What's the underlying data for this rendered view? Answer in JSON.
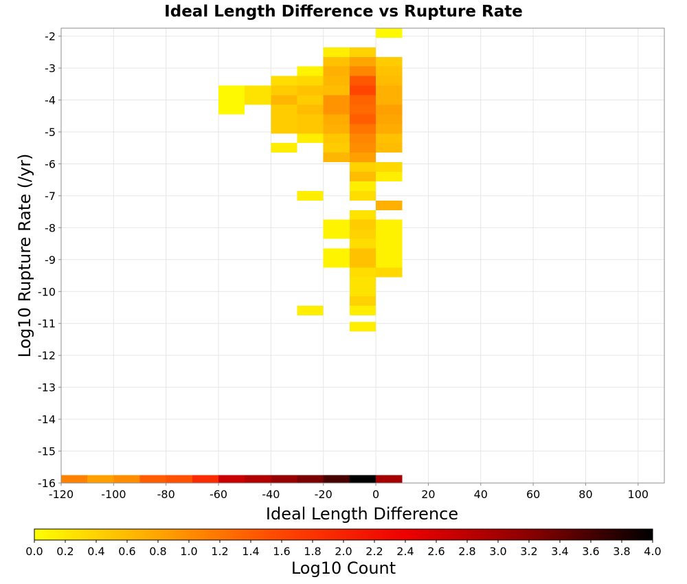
{
  "chart_data": {
    "type": "heatmap",
    "title": "Ideal Length Difference vs Rupture Rate",
    "xlabel": "Ideal Length Difference",
    "ylabel": "Log10 Rupture Rate (/yr)",
    "xlim": [
      -120,
      110
    ],
    "ylim": [
      -16,
      -1.75
    ],
    "x_ticks": [
      "-120",
      "-100",
      "-80",
      "-60",
      "-40",
      "-20",
      "0",
      "20",
      "40",
      "60",
      "80",
      "100"
    ],
    "y_ticks": [
      "-2",
      "-3",
      "-4",
      "-5",
      "-6",
      "-7",
      "-8",
      "-9",
      "-10",
      "-11",
      "-12",
      "-13",
      "-14",
      "-15",
      "-16"
    ],
    "bin_width_x": 10,
    "bin_height_y": 0.3,
    "grid": true,
    "colorbar": {
      "label": "Log10 Count",
      "range": [
        0,
        4
      ],
      "ticks": [
        "0.0",
        "0.2",
        "0.4",
        "0.6",
        "0.8",
        "1.0",
        "1.2",
        "1.4",
        "1.6",
        "1.8",
        "2.0",
        "2.2",
        "2.4",
        "2.6",
        "2.8",
        "3.0",
        "3.2",
        "3.4",
        "3.6",
        "3.8",
        "4.0"
      ],
      "colors": [
        "#ffff00",
        "#ffa500",
        "#ff4500",
        "#ee0000",
        "#8b0000",
        "#000000"
      ]
    },
    "cells": [
      {
        "x": 0,
        "y": -1.9,
        "v": 0.05
      },
      {
        "x": -20,
        "y": -2.5,
        "v": 0.15
      },
      {
        "x": -10,
        "y": -2.5,
        "v": 0.4
      },
      {
        "x": -20,
        "y": -2.8,
        "v": 0.55
      },
      {
        "x": -10,
        "y": -2.8,
        "v": 0.8
      },
      {
        "x": 0,
        "y": -2.8,
        "v": 0.45
      },
      {
        "x": -30,
        "y": -3.1,
        "v": 0.1
      },
      {
        "x": -20,
        "y": -3.1,
        "v": 0.7
      },
      {
        "x": -10,
        "y": -3.1,
        "v": 1.05
      },
      {
        "x": 0,
        "y": -3.1,
        "v": 0.55
      },
      {
        "x": -40,
        "y": -3.4,
        "v": 0.3
      },
      {
        "x": -30,
        "y": -3.4,
        "v": 0.35
      },
      {
        "x": -20,
        "y": -3.4,
        "v": 0.65
      },
      {
        "x": -10,
        "y": -3.4,
        "v": 1.45
      },
      {
        "x": 0,
        "y": -3.4,
        "v": 0.6
      },
      {
        "x": -60,
        "y": -3.7,
        "v": 0.05
      },
      {
        "x": -50,
        "y": -3.7,
        "v": 0.25
      },
      {
        "x": -40,
        "y": -3.7,
        "v": 0.45
      },
      {
        "x": -30,
        "y": -3.7,
        "v": 0.55
      },
      {
        "x": -20,
        "y": -3.7,
        "v": 0.6
      },
      {
        "x": -10,
        "y": -3.7,
        "v": 1.6
      },
      {
        "x": 0,
        "y": -3.7,
        "v": 0.7
      },
      {
        "x": -60,
        "y": -4.0,
        "v": 0.05
      },
      {
        "x": -50,
        "y": -4.0,
        "v": 0.25
      },
      {
        "x": -40,
        "y": -4.0,
        "v": 0.65
      },
      {
        "x": -30,
        "y": -4.0,
        "v": 0.45
      },
      {
        "x": -20,
        "y": -4.0,
        "v": 0.95
      },
      {
        "x": -10,
        "y": -4.0,
        "v": 1.35
      },
      {
        "x": 0,
        "y": -4.0,
        "v": 0.7
      },
      {
        "x": -60,
        "y": -4.3,
        "v": 0.05
      },
      {
        "x": -40,
        "y": -4.3,
        "v": 0.45
      },
      {
        "x": -30,
        "y": -4.3,
        "v": 0.6
      },
      {
        "x": -20,
        "y": -4.3,
        "v": 0.95
      },
      {
        "x": -10,
        "y": -4.3,
        "v": 1.3
      },
      {
        "x": 0,
        "y": -4.3,
        "v": 0.85
      },
      {
        "x": -40,
        "y": -4.6,
        "v": 0.45
      },
      {
        "x": -30,
        "y": -4.6,
        "v": 0.5
      },
      {
        "x": -20,
        "y": -4.6,
        "v": 0.75
      },
      {
        "x": -10,
        "y": -4.6,
        "v": 1.4
      },
      {
        "x": 0,
        "y": -4.6,
        "v": 0.8
      },
      {
        "x": -40,
        "y": -4.9,
        "v": 0.45
      },
      {
        "x": -30,
        "y": -4.9,
        "v": 0.5
      },
      {
        "x": -20,
        "y": -4.9,
        "v": 0.7
      },
      {
        "x": -10,
        "y": -4.9,
        "v": 1.2
      },
      {
        "x": 0,
        "y": -4.9,
        "v": 0.75
      },
      {
        "x": -30,
        "y": -5.2,
        "v": 0.15
      },
      {
        "x": -20,
        "y": -5.2,
        "v": 0.5
      },
      {
        "x": -10,
        "y": -5.2,
        "v": 1.05
      },
      {
        "x": 0,
        "y": -5.2,
        "v": 0.55
      },
      {
        "x": -40,
        "y": -5.5,
        "v": 0.15
      },
      {
        "x": -20,
        "y": -5.5,
        "v": 0.45
      },
      {
        "x": -10,
        "y": -5.5,
        "v": 1.0
      },
      {
        "x": 0,
        "y": -5.5,
        "v": 0.6
      },
      {
        "x": -20,
        "y": -5.8,
        "v": 0.65
      },
      {
        "x": -10,
        "y": -5.8,
        "v": 0.85
      },
      {
        "x": -10,
        "y": -6.1,
        "v": 0.4
      },
      {
        "x": 0,
        "y": -6.1,
        "v": 0.35
      },
      {
        "x": -10,
        "y": -6.4,
        "v": 0.6
      },
      {
        "x": 0,
        "y": -6.4,
        "v": 0.15
      },
      {
        "x": -10,
        "y": -6.7,
        "v": 0.15
      },
      {
        "x": -30,
        "y": -7.0,
        "v": 0.15
      },
      {
        "x": -10,
        "y": -7.0,
        "v": 0.3
      },
      {
        "x": 0,
        "y": -7.3,
        "v": 0.7
      },
      {
        "x": -10,
        "y": -7.6,
        "v": 0.25
      },
      {
        "x": -20,
        "y": -7.9,
        "v": 0.1
      },
      {
        "x": -10,
        "y": -7.9,
        "v": 0.45
      },
      {
        "x": 0,
        "y": -7.9,
        "v": 0.12
      },
      {
        "x": -20,
        "y": -8.2,
        "v": 0.1
      },
      {
        "x": -10,
        "y": -8.2,
        "v": 0.4
      },
      {
        "x": 0,
        "y": -8.2,
        "v": 0.12
      },
      {
        "x": -10,
        "y": -8.5,
        "v": 0.3
      },
      {
        "x": 0,
        "y": -8.5,
        "v": 0.12
      },
      {
        "x": -20,
        "y": -8.8,
        "v": 0.1
      },
      {
        "x": -10,
        "y": -8.8,
        "v": 0.55
      },
      {
        "x": 0,
        "y": -8.8,
        "v": 0.12
      },
      {
        "x": -20,
        "y": -9.1,
        "v": 0.1
      },
      {
        "x": -10,
        "y": -9.1,
        "v": 0.55
      },
      {
        "x": 0,
        "y": -9.1,
        "v": 0.12
      },
      {
        "x": -10,
        "y": -9.4,
        "v": 0.3
      },
      {
        "x": 0,
        "y": -9.4,
        "v": 0.35
      },
      {
        "x": -10,
        "y": -9.7,
        "v": 0.25
      },
      {
        "x": -10,
        "y": -10.0,
        "v": 0.25
      },
      {
        "x": -10,
        "y": -10.3,
        "v": 0.4
      },
      {
        "x": -30,
        "y": -10.6,
        "v": 0.15
      },
      {
        "x": -10,
        "y": -10.6,
        "v": 0.15
      },
      {
        "x": -10,
        "y": -11.1,
        "v": 0.15
      },
      {
        "x": -120,
        "y": -15.9,
        "v": 1.1
      },
      {
        "x": -110,
        "y": -15.9,
        "v": 0.85
      },
      {
        "x": -100,
        "y": -15.9,
        "v": 1.0
      },
      {
        "x": -90,
        "y": -15.9,
        "v": 1.4
      },
      {
        "x": -80,
        "y": -15.9,
        "v": 1.5
      },
      {
        "x": -70,
        "y": -15.9,
        "v": 1.9
      },
      {
        "x": -60,
        "y": -15.9,
        "v": 2.7
      },
      {
        "x": -50,
        "y": -15.9,
        "v": 2.9
      },
      {
        "x": -40,
        "y": -15.9,
        "v": 3.1
      },
      {
        "x": -30,
        "y": -15.9,
        "v": 3.3
      },
      {
        "x": -20,
        "y": -15.9,
        "v": 3.6
      },
      {
        "x": -10,
        "y": -15.9,
        "v": 4.0
      },
      {
        "x": 0,
        "y": -15.9,
        "v": 3.0
      }
    ]
  }
}
